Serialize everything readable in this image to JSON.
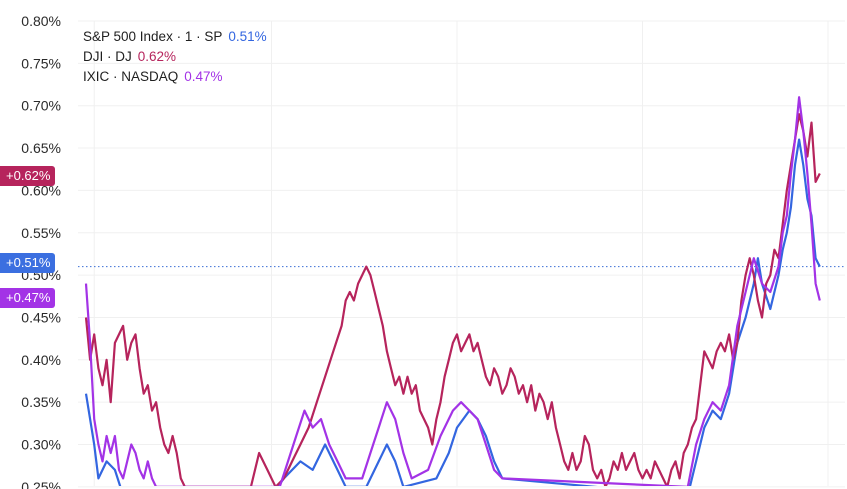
{
  "chart_data": {
    "type": "line",
    "y_unit": "%",
    "ylim": [
      0.25,
      0.8
    ],
    "y_ticks": [
      "0.80%",
      "0.75%",
      "0.70%",
      "0.65%",
      "0.60%",
      "0.55%",
      "0.50%",
      "0.45%",
      "0.40%",
      "0.35%",
      "0.30%",
      "0.25%"
    ],
    "y_tick_values": [
      0.8,
      0.75,
      0.7,
      0.65,
      0.6,
      0.55,
      0.5,
      0.45,
      0.4,
      0.35,
      0.3,
      0.25
    ],
    "x_range": [
      0,
      180
    ],
    "x_gridlines": [
      2,
      45,
      90,
      135,
      180
    ],
    "grid": true,
    "legend_position": "top-left",
    "reference_line": {
      "value": 0.51,
      "color": "#3b6fd6"
    },
    "series": [
      {
        "name": "S&P 500 Index · 1 · SP",
        "value_label": "0.51%",
        "badge": "+0.51%",
        "color": "#3366e0",
        "points": [
          [
            0,
            0.36
          ],
          [
            1,
            0.33
          ],
          [
            2,
            0.3
          ],
          [
            3,
            0.26
          ],
          [
            5,
            0.28
          ],
          [
            7,
            0.27
          ],
          [
            9,
            0.24
          ],
          [
            45,
            0.24
          ],
          [
            48,
            0.26
          ],
          [
            52,
            0.28
          ],
          [
            55,
            0.27
          ],
          [
            58,
            0.3
          ],
          [
            61,
            0.27
          ],
          [
            63,
            0.25
          ],
          [
            68,
            0.25
          ],
          [
            71,
            0.28
          ],
          [
            73,
            0.3
          ],
          [
            75,
            0.28
          ],
          [
            77,
            0.25
          ],
          [
            85,
            0.26
          ],
          [
            88,
            0.29
          ],
          [
            90,
            0.32
          ],
          [
            93,
            0.34
          ],
          [
            95,
            0.33
          ],
          [
            97,
            0.31
          ],
          [
            99,
            0.28
          ],
          [
            101,
            0.26
          ],
          [
            146,
            0.24
          ],
          [
            148,
            0.28
          ],
          [
            150,
            0.32
          ],
          [
            152,
            0.34
          ],
          [
            154,
            0.33
          ],
          [
            156,
            0.36
          ],
          [
            158,
            0.42
          ],
          [
            160,
            0.45
          ],
          [
            162,
            0.49
          ],
          [
            163,
            0.52
          ],
          [
            164,
            0.49
          ],
          [
            166,
            0.46
          ],
          [
            168,
            0.5
          ],
          [
            169,
            0.53
          ],
          [
            170,
            0.55
          ],
          [
            171,
            0.58
          ],
          [
            172,
            0.63
          ],
          [
            173,
            0.66
          ],
          [
            174,
            0.63
          ],
          [
            175,
            0.59
          ],
          [
            176,
            0.57
          ],
          [
            177,
            0.52
          ],
          [
            178,
            0.51
          ]
        ]
      },
      {
        "name": "DJI · DJ",
        "value_label": "0.62%",
        "badge": "+0.62%",
        "color": "#b6245c",
        "points": [
          [
            0,
            0.45
          ],
          [
            1,
            0.4
          ],
          [
            2,
            0.43
          ],
          [
            3,
            0.39
          ],
          [
            4,
            0.37
          ],
          [
            5,
            0.4
          ],
          [
            6,
            0.35
          ],
          [
            7,
            0.42
          ],
          [
            8,
            0.43
          ],
          [
            9,
            0.44
          ],
          [
            10,
            0.4
          ],
          [
            11,
            0.42
          ],
          [
            12,
            0.43
          ],
          [
            13,
            0.39
          ],
          [
            14,
            0.36
          ],
          [
            15,
            0.37
          ],
          [
            16,
            0.34
          ],
          [
            17,
            0.35
          ],
          [
            18,
            0.32
          ],
          [
            19,
            0.3
          ],
          [
            20,
            0.29
          ],
          [
            21,
            0.31
          ],
          [
            22,
            0.29
          ],
          [
            23,
            0.26
          ],
          [
            24,
            0.25
          ],
          [
            40,
            0.25
          ],
          [
            42,
            0.29
          ],
          [
            44,
            0.27
          ],
          [
            46,
            0.25
          ],
          [
            48,
            0.26
          ],
          [
            50,
            0.28
          ],
          [
            52,
            0.3
          ],
          [
            54,
            0.32
          ],
          [
            56,
            0.35
          ],
          [
            58,
            0.38
          ],
          [
            60,
            0.41
          ],
          [
            62,
            0.44
          ],
          [
            63,
            0.47
          ],
          [
            64,
            0.48
          ],
          [
            65,
            0.47
          ],
          [
            66,
            0.49
          ],
          [
            67,
            0.5
          ],
          [
            68,
            0.51
          ],
          [
            69,
            0.5
          ],
          [
            70,
            0.48
          ],
          [
            71,
            0.46
          ],
          [
            72,
            0.44
          ],
          [
            73,
            0.41
          ],
          [
            74,
            0.39
          ],
          [
            75,
            0.37
          ],
          [
            76,
            0.38
          ],
          [
            77,
            0.36
          ],
          [
            78,
            0.38
          ],
          [
            79,
            0.36
          ],
          [
            80,
            0.37
          ],
          [
            81,
            0.34
          ],
          [
            82,
            0.33
          ],
          [
            83,
            0.32
          ],
          [
            84,
            0.3
          ],
          [
            85,
            0.33
          ],
          [
            86,
            0.35
          ],
          [
            87,
            0.38
          ],
          [
            88,
            0.4
          ],
          [
            89,
            0.42
          ],
          [
            90,
            0.43
          ],
          [
            91,
            0.41
          ],
          [
            92,
            0.42
          ],
          [
            93,
            0.43
          ],
          [
            94,
            0.41
          ],
          [
            95,
            0.42
          ],
          [
            96,
            0.4
          ],
          [
            97,
            0.38
          ],
          [
            98,
            0.37
          ],
          [
            99,
            0.39
          ],
          [
            100,
            0.38
          ],
          [
            101,
            0.36
          ],
          [
            102,
            0.37
          ],
          [
            103,
            0.39
          ],
          [
            104,
            0.38
          ],
          [
            105,
            0.36
          ],
          [
            106,
            0.37
          ],
          [
            107,
            0.35
          ],
          [
            108,
            0.37
          ],
          [
            109,
            0.34
          ],
          [
            110,
            0.36
          ],
          [
            111,
            0.35
          ],
          [
            112,
            0.33
          ],
          [
            113,
            0.35
          ],
          [
            114,
            0.32
          ],
          [
            115,
            0.3
          ],
          [
            116,
            0.28
          ],
          [
            117,
            0.27
          ],
          [
            118,
            0.29
          ],
          [
            119,
            0.27
          ],
          [
            120,
            0.28
          ],
          [
            121,
            0.31
          ],
          [
            122,
            0.3
          ],
          [
            123,
            0.27
          ],
          [
            124,
            0.26
          ],
          [
            125,
            0.27
          ],
          [
            126,
            0.25
          ],
          [
            127,
            0.26
          ],
          [
            128,
            0.28
          ],
          [
            129,
            0.27
          ],
          [
            130,
            0.29
          ],
          [
            131,
            0.27
          ],
          [
            132,
            0.28
          ],
          [
            133,
            0.29
          ],
          [
            134,
            0.27
          ],
          [
            135,
            0.26
          ],
          [
            136,
            0.27
          ],
          [
            137,
            0.26
          ],
          [
            138,
            0.28
          ],
          [
            139,
            0.27
          ],
          [
            140,
            0.26
          ],
          [
            141,
            0.25
          ],
          [
            142,
            0.27
          ],
          [
            143,
            0.28
          ],
          [
            144,
            0.26
          ],
          [
            145,
            0.29
          ],
          [
            146,
            0.3
          ],
          [
            147,
            0.32
          ],
          [
            148,
            0.33
          ],
          [
            149,
            0.37
          ],
          [
            150,
            0.41
          ],
          [
            151,
            0.4
          ],
          [
            152,
            0.39
          ],
          [
            153,
            0.41
          ],
          [
            154,
            0.42
          ],
          [
            155,
            0.41
          ],
          [
            156,
            0.43
          ],
          [
            157,
            0.4
          ],
          [
            158,
            0.42
          ],
          [
            159,
            0.47
          ],
          [
            160,
            0.5
          ],
          [
            161,
            0.52
          ],
          [
            162,
            0.5
          ],
          [
            163,
            0.47
          ],
          [
            164,
            0.45
          ],
          [
            165,
            0.49
          ],
          [
            166,
            0.5
          ],
          [
            167,
            0.53
          ],
          [
            168,
            0.52
          ],
          [
            169,
            0.56
          ],
          [
            170,
            0.6
          ],
          [
            171,
            0.63
          ],
          [
            172,
            0.66
          ],
          [
            173,
            0.69
          ],
          [
            174,
            0.67
          ],
          [
            175,
            0.64
          ],
          [
            176,
            0.68
          ],
          [
            177,
            0.61
          ],
          [
            178,
            0.62
          ]
        ]
      },
      {
        "name": "IXIC · NASDAQ",
        "value_label": "0.47%",
        "badge": "+0.47%",
        "color": "#a333e6",
        "points": [
          [
            0,
            0.49
          ],
          [
            1,
            0.42
          ],
          [
            2,
            0.33
          ],
          [
            3,
            0.3
          ],
          [
            4,
            0.28
          ],
          [
            5,
            0.31
          ],
          [
            6,
            0.29
          ],
          [
            7,
            0.31
          ],
          [
            8,
            0.27
          ],
          [
            9,
            0.26
          ],
          [
            10,
            0.28
          ],
          [
            11,
            0.3
          ],
          [
            12,
            0.29
          ],
          [
            13,
            0.27
          ],
          [
            14,
            0.26
          ],
          [
            15,
            0.28
          ],
          [
            16,
            0.26
          ],
          [
            17,
            0.25
          ],
          [
            47,
            0.25
          ],
          [
            49,
            0.28
          ],
          [
            51,
            0.31
          ],
          [
            53,
            0.34
          ],
          [
            55,
            0.32
          ],
          [
            57,
            0.33
          ],
          [
            59,
            0.3
          ],
          [
            61,
            0.28
          ],
          [
            63,
            0.26
          ],
          [
            67,
            0.26
          ],
          [
            69,
            0.29
          ],
          [
            71,
            0.32
          ],
          [
            73,
            0.35
          ],
          [
            75,
            0.33
          ],
          [
            77,
            0.29
          ],
          [
            79,
            0.26
          ],
          [
            83,
            0.27
          ],
          [
            86,
            0.31
          ],
          [
            89,
            0.34
          ],
          [
            91,
            0.35
          ],
          [
            93,
            0.34
          ],
          [
            95,
            0.33
          ],
          [
            97,
            0.3
          ],
          [
            99,
            0.27
          ],
          [
            101,
            0.26
          ],
          [
            146,
            0.25
          ],
          [
            148,
            0.3
          ],
          [
            150,
            0.33
          ],
          [
            152,
            0.35
          ],
          [
            154,
            0.34
          ],
          [
            156,
            0.37
          ],
          [
            158,
            0.44
          ],
          [
            160,
            0.48
          ],
          [
            162,
            0.52
          ],
          [
            164,
            0.49
          ],
          [
            166,
            0.48
          ],
          [
            168,
            0.51
          ],
          [
            169,
            0.55
          ],
          [
            170,
            0.57
          ],
          [
            171,
            0.62
          ],
          [
            172,
            0.66
          ],
          [
            173,
            0.71
          ],
          [
            174,
            0.67
          ],
          [
            175,
            0.62
          ],
          [
            176,
            0.56
          ],
          [
            177,
            0.49
          ],
          [
            178,
            0.47
          ]
        ]
      }
    ]
  }
}
